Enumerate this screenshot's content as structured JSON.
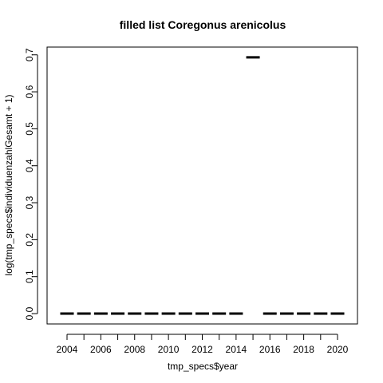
{
  "chart_data": {
    "type": "boxplot",
    "title": "filled list Coregonus arenicolus",
    "xlabel": "tmp_specs$year",
    "ylabel": "log(tmp_specs$individuenzahlGesamt + 1)",
    "categories": [
      "2004",
      "2005",
      "2006",
      "2007",
      "2008",
      "2009",
      "2010",
      "2011",
      "2012",
      "2013",
      "2014",
      "2015",
      "2016",
      "2017",
      "2018",
      "2019",
      "2020"
    ],
    "values": [
      0,
      0,
      0,
      0,
      0,
      0,
      0,
      0,
      0,
      0,
      0,
      0.6931,
      0,
      0,
      0,
      0,
      0
    ],
    "x_tick_labels": [
      "2004",
      "2006",
      "2008",
      "2010",
      "2012",
      "2014",
      "2016",
      "2018",
      "2020"
    ],
    "y_ticks": [
      0.0,
      0.1,
      0.2,
      0.3,
      0.4,
      0.5,
      0.6,
      0.7
    ],
    "y_tick_labels": [
      "0.0",
      "0.1",
      "0.2",
      "0.3",
      "0.4",
      "0.5",
      "0.6",
      "0.7"
    ],
    "ylim": [
      -0.028,
      0.721
    ],
    "grid": false,
    "legend": "none",
    "colors": {
      "line": "#000000",
      "background": "#ffffff"
    }
  }
}
